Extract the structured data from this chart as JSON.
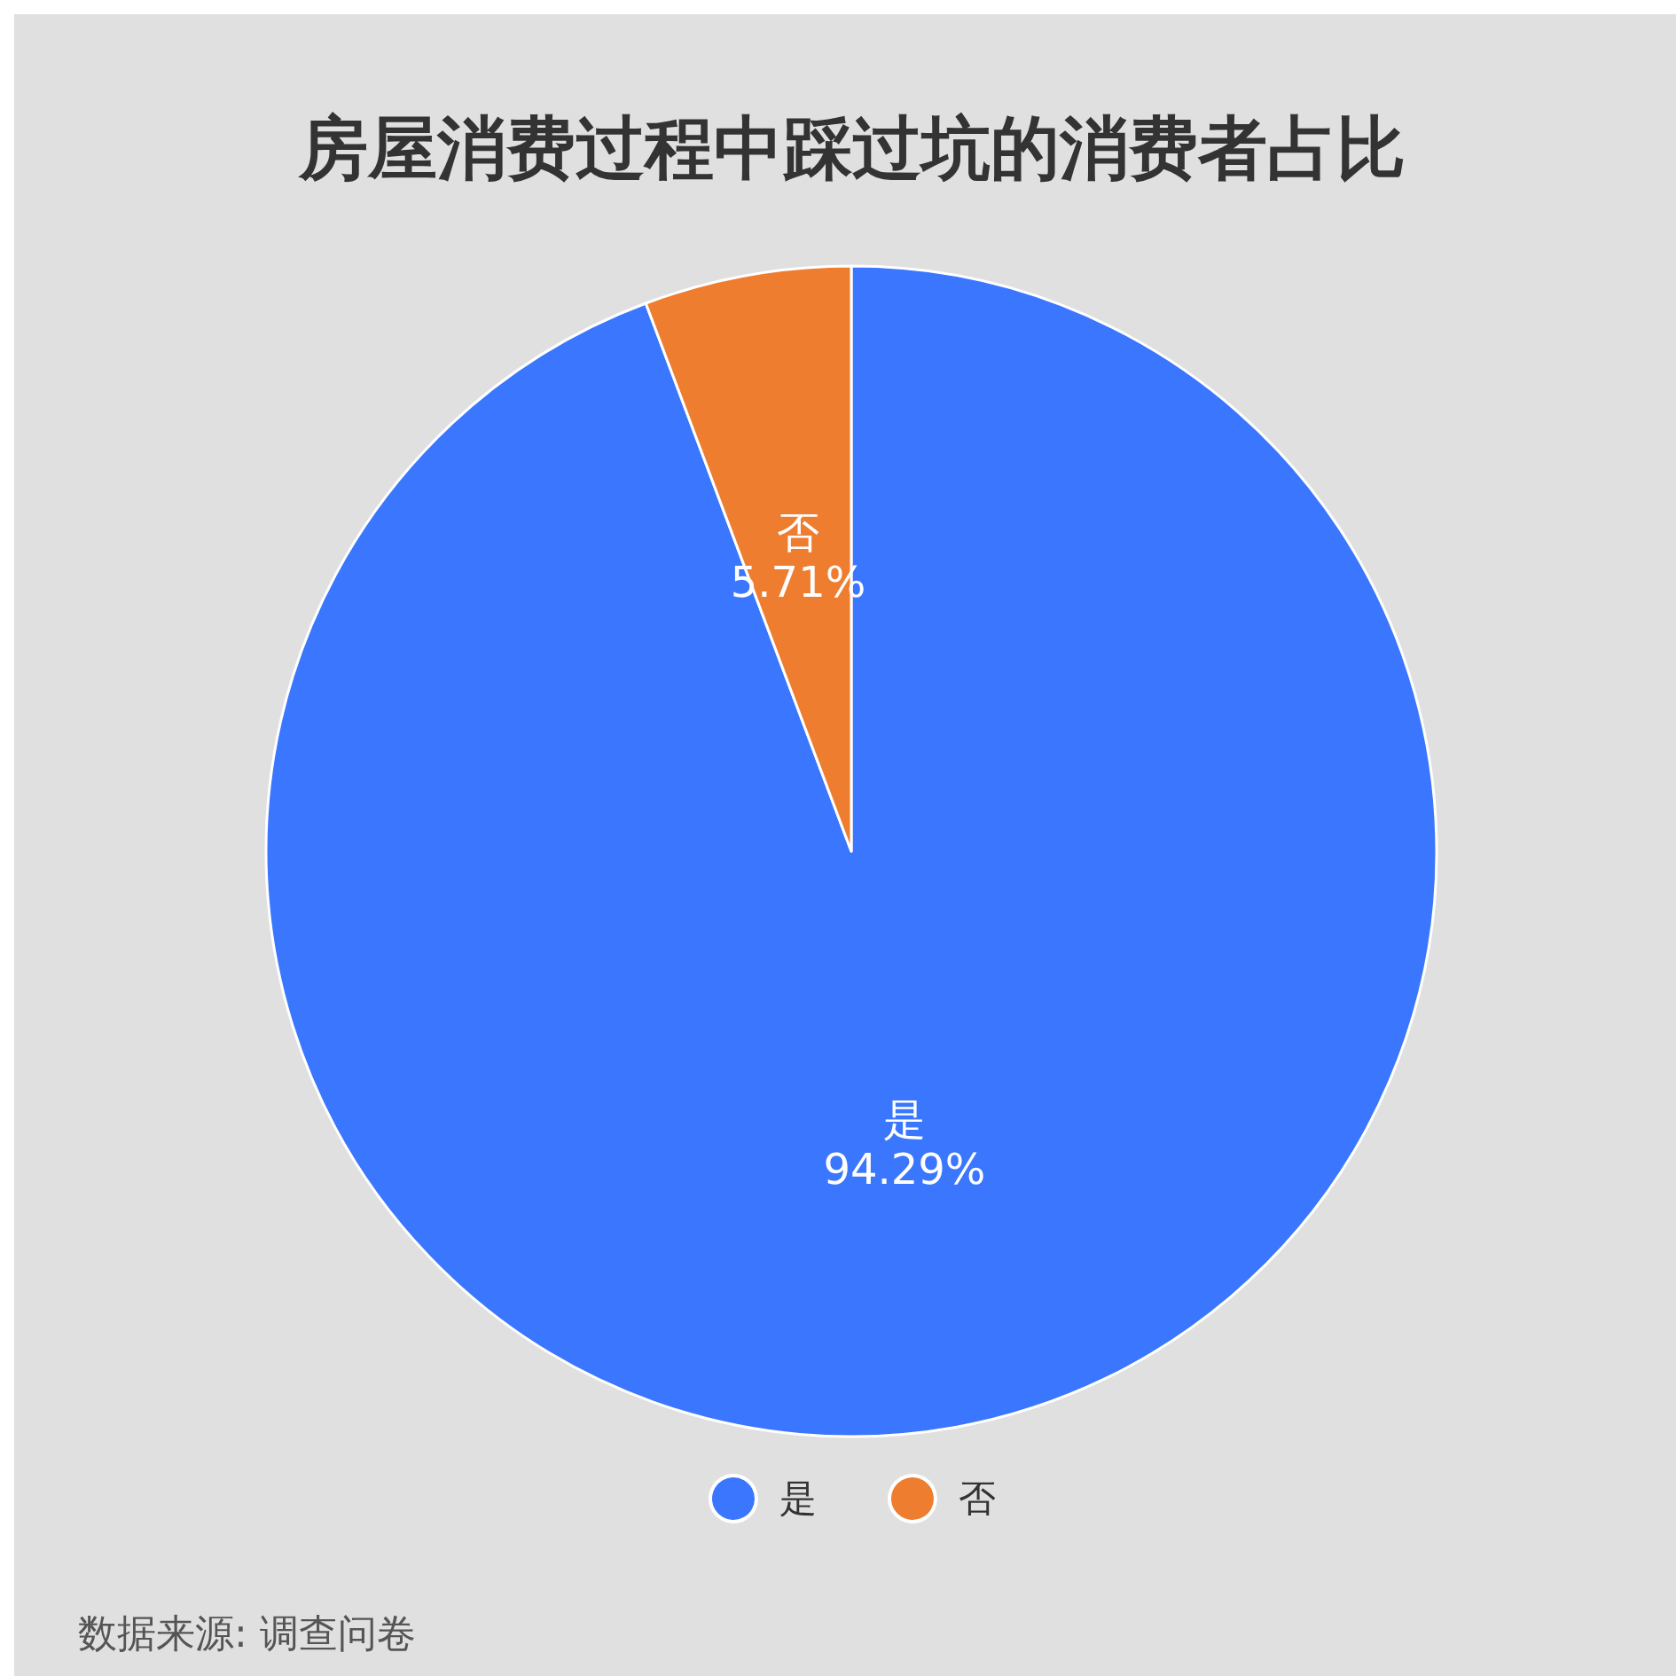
{
  "chart_data": {
    "type": "pie",
    "title": "房屋消费过程中踩过坑的消费者占比",
    "categories": [
      "是",
      "否"
    ],
    "values": [
      94.29,
      5.71
    ],
    "colors": [
      "#3a76fe",
      "#ee7d30"
    ],
    "value_labels": [
      "94.29%",
      "5.71%"
    ],
    "legend": "bottom",
    "annotations": [
      "数据来源: 调查问卷"
    ]
  }
}
